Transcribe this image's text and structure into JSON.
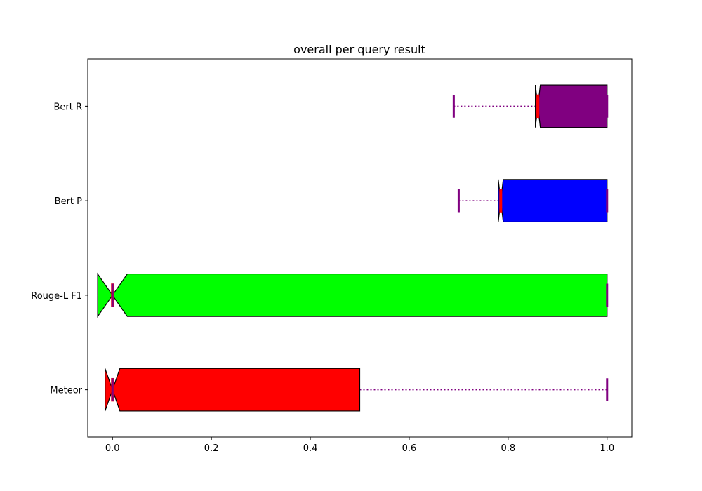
{
  "chart_data": {
    "type": "boxplot",
    "orientation": "horizontal",
    "title": "overall per query result",
    "xlabel": "",
    "ylabel": "",
    "xlim": [
      -0.05,
      1.05
    ],
    "xticks": [
      0.0,
      0.2,
      0.4,
      0.6,
      0.8,
      1.0
    ],
    "xtick_labels": [
      "0.0",
      "0.2",
      "0.4",
      "0.6",
      "0.8",
      "1.0"
    ],
    "notched": true,
    "grid": false,
    "series": [
      {
        "name": "Meteor",
        "color": "#ff0000",
        "whisker_low": 0.0,
        "q1": 0.0,
        "median": 0.0,
        "q3": 0.5,
        "whisker_high": 1.0,
        "notch_low": -0.015,
        "notch_high": 0.015
      },
      {
        "name": "Rouge-L F1",
        "color": "#00ff00",
        "whisker_low": 0.0,
        "q1": 0.0,
        "median": 0.0,
        "q3": 1.0,
        "whisker_high": 1.0,
        "notch_low": -0.03,
        "notch_high": 0.03
      },
      {
        "name": "Bert P",
        "color": "#0000ff",
        "whisker_low": 0.7,
        "q1": 0.785,
        "median": 0.785,
        "q3": 1.0,
        "whisker_high": 1.0,
        "notch_low": 0.78,
        "notch_high": 0.79
      },
      {
        "name": "Bert R",
        "color": "#800080",
        "whisker_low": 0.69,
        "q1": 0.86,
        "median": 0.86,
        "q3": 1.0,
        "whisker_high": 1.0,
        "notch_low": 0.855,
        "notch_high": 0.865
      }
    ],
    "median_color": "#ff0000",
    "whisker_color": "#800080",
    "whisker_style": "dotted"
  }
}
